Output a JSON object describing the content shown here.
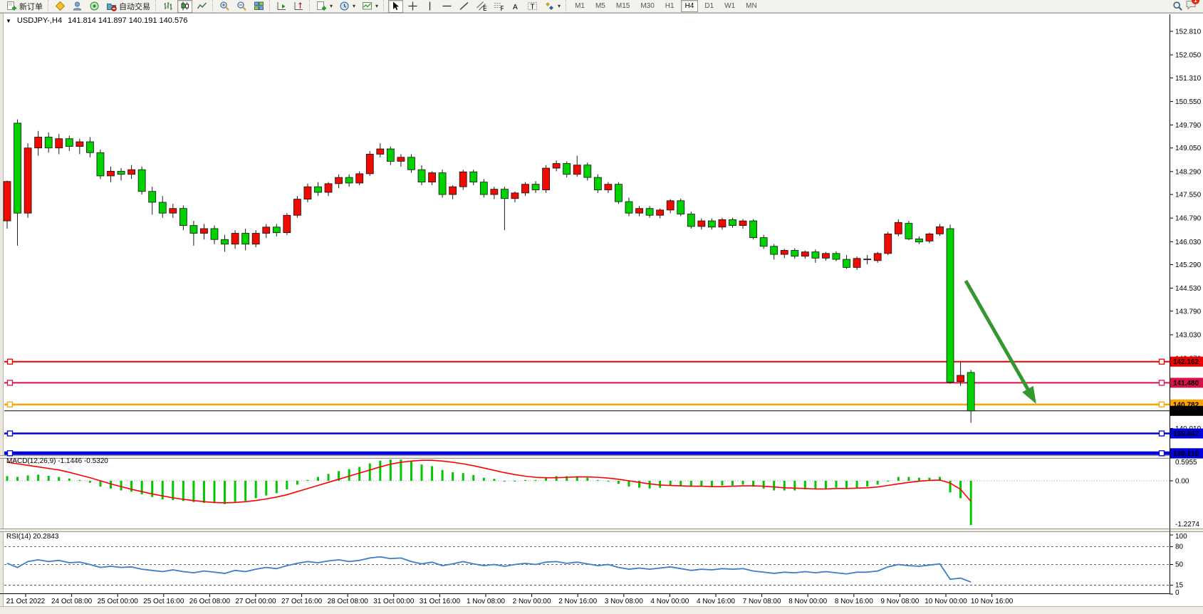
{
  "toolbar": {
    "new_order_label": "新订单",
    "auto_trading_label": "自动交易",
    "timeframes": [
      "M1",
      "M5",
      "M15",
      "M30",
      "H1",
      "H4",
      "D1",
      "W1",
      "MN"
    ],
    "active_timeframe": "H4",
    "chat_badge": "1"
  },
  "chart": {
    "symbol_period": "USDJPY-,H4",
    "ohlc_text": "141.814 141.897 140.191 140.576"
  },
  "chart_data": {
    "type": "candlestick",
    "symbol": "USDJPY-",
    "period": "H4",
    "current_bar": {
      "open": 141.814,
      "high": 141.897,
      "low": 140.191,
      "close": 140.576
    },
    "colors": {
      "bull": "#f00a00",
      "bear": "#00d200",
      "wick": "#1a1a1a",
      "macd_hist": "#00c800",
      "macd_signal": "#ff0000",
      "rsi_line": "#3d7dc8",
      "arrow": "#35972f",
      "red_line": "#ee0000",
      "crimson_line": "#d81148",
      "orange_line": "#ffa300",
      "blue_line": "#0000dd",
      "black_line": "#000000"
    },
    "price_axis": {
      "ticks": [
        "152.810",
        "152.050",
        "151.310",
        "150.550",
        "149.790",
        "149.050",
        "148.290",
        "147.550",
        "146.790",
        "146.030",
        "145.290",
        "144.530",
        "143.790",
        "143.030",
        "142.270",
        "140.010"
      ]
    },
    "hlines": [
      {
        "price": 142.162,
        "label": "142.162",
        "color": "#ee0000",
        "width": 2,
        "handles": true
      },
      {
        "price": 141.48,
        "label": "141.480",
        "color": "#d81148",
        "width": 2,
        "handles": true
      },
      {
        "price": 140.782,
        "label": "140.782",
        "color": "#ffa300",
        "width": 2.5,
        "handles": true
      },
      {
        "price": 140.576,
        "label": "140.576",
        "color": "#000000",
        "width": 1,
        "handles": false
      },
      {
        "price": 139.847,
        "label": "139.847",
        "color": "#0000dd",
        "width": 2.5,
        "handles": true
      },
      {
        "price": 139.21,
        "label": "139.210",
        "color": "#0000dd",
        "width": 5,
        "handles": true
      }
    ],
    "arrow": {
      "from_bar": 92.5,
      "from_price": 144.77,
      "to_bar": 99.3,
      "to_price": 140.8
    },
    "candles": [
      [
        146.7,
        148.0,
        146.45,
        147.97
      ],
      [
        149.85,
        149.97,
        145.9,
        146.95
      ],
      [
        146.95,
        149.2,
        146.8,
        149.05
      ],
      [
        149.05,
        149.6,
        148.8,
        149.4
      ],
      [
        149.4,
        149.55,
        148.9,
        149.05
      ],
      [
        149.05,
        149.5,
        148.85,
        149.35
      ],
      [
        149.35,
        149.45,
        148.95,
        149.1
      ],
      [
        149.1,
        149.35,
        148.85,
        149.25
      ],
      [
        149.25,
        149.4,
        148.75,
        148.9
      ],
      [
        148.9,
        149.0,
        148.05,
        148.15
      ],
      [
        148.15,
        148.45,
        147.95,
        148.3
      ],
      [
        148.3,
        148.4,
        148.0,
        148.2
      ],
      [
        148.2,
        148.5,
        148.05,
        148.35
      ],
      [
        148.35,
        148.45,
        147.55,
        147.65
      ],
      [
        147.65,
        147.8,
        146.9,
        147.3
      ],
      [
        147.3,
        147.5,
        146.8,
        146.95
      ],
      [
        146.95,
        147.25,
        146.8,
        147.1
      ],
      [
        147.1,
        147.2,
        146.4,
        146.55
      ],
      [
        146.55,
        146.7,
        145.9,
        146.3
      ],
      [
        146.3,
        146.6,
        146.1,
        146.45
      ],
      [
        146.45,
        146.55,
        145.95,
        146.1
      ],
      [
        146.1,
        146.25,
        145.7,
        145.95
      ],
      [
        145.95,
        146.4,
        145.8,
        146.3
      ],
      [
        146.3,
        146.45,
        145.75,
        145.95
      ],
      [
        145.95,
        146.4,
        145.85,
        146.3
      ],
      [
        146.3,
        146.6,
        146.15,
        146.5
      ],
      [
        146.5,
        146.6,
        146.2,
        146.32
      ],
      [
        146.32,
        146.95,
        146.25,
        146.88
      ],
      [
        146.88,
        147.5,
        146.8,
        147.4
      ],
      [
        147.4,
        147.9,
        147.3,
        147.8
      ],
      [
        147.8,
        147.95,
        147.5,
        147.62
      ],
      [
        147.62,
        147.95,
        147.5,
        147.9
      ],
      [
        147.9,
        148.2,
        147.75,
        148.1
      ],
      [
        148.1,
        148.2,
        147.8,
        147.92
      ],
      [
        147.92,
        148.3,
        147.85,
        148.22
      ],
      [
        148.22,
        148.95,
        148.15,
        148.85
      ],
      [
        148.85,
        149.2,
        148.75,
        149.02
      ],
      [
        149.02,
        149.1,
        148.5,
        148.62
      ],
      [
        148.62,
        148.85,
        148.45,
        148.75
      ],
      [
        148.75,
        148.85,
        148.25,
        148.35
      ],
      [
        148.35,
        148.5,
        147.85,
        147.95
      ],
      [
        147.95,
        148.3,
        147.85,
        148.25
      ],
      [
        148.25,
        148.35,
        147.45,
        147.55
      ],
      [
        147.55,
        147.85,
        147.4,
        147.8
      ],
      [
        147.8,
        148.35,
        147.7,
        148.28
      ],
      [
        148.28,
        148.35,
        147.85,
        147.95
      ],
      [
        147.95,
        148.05,
        147.45,
        147.55
      ],
      [
        147.55,
        147.8,
        147.4,
        147.72
      ],
      [
        147.72,
        147.8,
        146.4,
        147.42
      ],
      [
        147.42,
        147.65,
        147.3,
        147.6
      ],
      [
        147.6,
        147.95,
        147.5,
        147.88
      ],
      [
        147.88,
        147.98,
        147.6,
        147.7
      ],
      [
        147.7,
        148.5,
        147.6,
        148.4
      ],
      [
        148.4,
        148.65,
        148.3,
        148.55
      ],
      [
        148.55,
        148.62,
        148.1,
        148.2
      ],
      [
        148.2,
        148.8,
        148.12,
        148.5
      ],
      [
        148.5,
        148.58,
        148.0,
        148.1
      ],
      [
        148.1,
        148.2,
        147.6,
        147.7
      ],
      [
        147.7,
        147.95,
        147.6,
        147.88
      ],
      [
        147.88,
        147.95,
        147.25,
        147.32
      ],
      [
        147.32,
        147.45,
        146.85,
        146.95
      ],
      [
        146.95,
        147.18,
        146.85,
        147.1
      ],
      [
        147.1,
        147.18,
        146.8,
        146.88
      ],
      [
        146.88,
        147.1,
        146.78,
        147.05
      ],
      [
        147.05,
        147.4,
        146.95,
        147.35
      ],
      [
        147.35,
        147.42,
        146.85,
        146.92
      ],
      [
        146.92,
        147.0,
        146.45,
        146.52
      ],
      [
        146.52,
        146.78,
        146.42,
        146.7
      ],
      [
        146.7,
        146.78,
        146.42,
        146.5
      ],
      [
        146.5,
        146.8,
        146.42,
        146.74
      ],
      [
        146.74,
        146.8,
        146.48,
        146.55
      ],
      [
        146.55,
        146.76,
        146.45,
        146.7
      ],
      [
        146.7,
        146.76,
        146.1,
        146.16
      ],
      [
        146.16,
        146.25,
        145.8,
        145.88
      ],
      [
        145.88,
        145.95,
        145.45,
        145.62
      ],
      [
        145.62,
        145.8,
        145.5,
        145.75
      ],
      [
        145.75,
        145.82,
        145.48,
        145.56
      ],
      [
        145.56,
        145.75,
        145.48,
        145.7
      ],
      [
        145.7,
        145.78,
        145.35,
        145.5
      ],
      [
        145.5,
        145.7,
        145.42,
        145.65
      ],
      [
        145.65,
        145.72,
        145.4,
        145.46
      ],
      [
        145.46,
        145.6,
        145.15,
        145.2
      ],
      [
        145.2,
        145.55,
        145.12,
        145.49
      ],
      [
        145.46,
        145.6,
        145.3,
        145.47
      ],
      [
        145.42,
        145.7,
        145.35,
        145.65
      ],
      [
        145.65,
        146.35,
        145.6,
        146.28
      ],
      [
        146.28,
        146.75,
        146.2,
        146.65
      ],
      [
        146.62,
        146.7,
        146.08,
        146.12
      ],
      [
        146.12,
        146.2,
        145.95,
        146.02
      ],
      [
        146.05,
        146.32,
        145.98,
        146.28
      ],
      [
        146.28,
        146.6,
        146.22,
        146.51
      ],
      [
        146.45,
        146.58,
        141.45,
        141.5
      ],
      [
        141.52,
        142.16,
        141.38,
        141.72
      ],
      [
        141.814,
        141.897,
        140.191,
        140.576
      ]
    ],
    "macd": {
      "name": "MACD(12,26,9)",
      "values_text": "-1.1446 -0.5320",
      "scale": {
        "max": "0.5955",
        "zero": "0.00",
        "min": "-1.2274"
      },
      "hist": [
        0.12,
        0.1,
        0.14,
        0.16,
        0.13,
        0.1,
        0.06,
        0.02,
        -0.05,
        -0.15,
        -0.2,
        -0.25,
        -0.28,
        -0.35,
        -0.42,
        -0.48,
        -0.5,
        -0.52,
        -0.55,
        -0.57,
        -0.58,
        -0.6,
        -0.55,
        -0.52,
        -0.45,
        -0.38,
        -0.32,
        -0.22,
        -0.1,
        0.02,
        0.1,
        0.18,
        0.25,
        0.3,
        0.36,
        0.45,
        0.52,
        0.55,
        0.55,
        0.5,
        0.42,
        0.38,
        0.28,
        0.22,
        0.2,
        0.15,
        0.08,
        0.05,
        0.0,
        0.0,
        0.02,
        0.02,
        0.08,
        0.12,
        0.12,
        0.12,
        0.08,
        0.02,
        -0.02,
        -0.08,
        -0.15,
        -0.18,
        -0.2,
        -0.18,
        -0.12,
        -0.12,
        -0.15,
        -0.15,
        -0.15,
        -0.12,
        -0.12,
        -0.1,
        -0.15,
        -0.2,
        -0.25,
        -0.25,
        -0.25,
        -0.22,
        -0.22,
        -0.2,
        -0.18,
        -0.2,
        -0.18,
        -0.15,
        -0.1,
        0.0,
        0.1,
        0.1,
        0.08,
        0.08,
        0.1,
        -0.3,
        -0.45,
        -1.1446
      ],
      "signal": [
        0.48,
        0.44,
        0.4,
        0.36,
        0.32,
        0.28,
        0.22,
        0.15,
        0.08,
        0.0,
        -0.08,
        -0.15,
        -0.22,
        -0.28,
        -0.34,
        -0.39,
        -0.44,
        -0.48,
        -0.51,
        -0.54,
        -0.56,
        -0.57,
        -0.56,
        -0.54,
        -0.51,
        -0.47,
        -0.42,
        -0.36,
        -0.28,
        -0.2,
        -0.12,
        -0.04,
        0.04,
        0.12,
        0.2,
        0.28,
        0.36,
        0.43,
        0.48,
        0.51,
        0.53,
        0.53,
        0.51,
        0.48,
        0.44,
        0.39,
        0.33,
        0.27,
        0.21,
        0.16,
        0.12,
        0.09,
        0.08,
        0.08,
        0.09,
        0.1,
        0.1,
        0.09,
        0.07,
        0.04,
        0.0,
        -0.04,
        -0.08,
        -0.11,
        -0.12,
        -0.13,
        -0.14,
        -0.14,
        -0.15,
        -0.15,
        -0.14,
        -0.13,
        -0.13,
        -0.14,
        -0.16,
        -0.18,
        -0.19,
        -0.2,
        -0.21,
        -0.21,
        -0.2,
        -0.2,
        -0.19,
        -0.18,
        -0.16,
        -0.12,
        -0.08,
        -0.04,
        -0.01,
        0.01,
        0.02,
        -0.06,
        -0.22,
        -0.532
      ]
    },
    "rsi": {
      "name": "RSI(14)",
      "value_text": "20.2843",
      "levels": [
        100,
        80,
        50,
        15,
        0
      ],
      "dashed_levels": [
        80,
        50,
        15
      ],
      "values": [
        52,
        45,
        55,
        58,
        55,
        57,
        53,
        54,
        50,
        45,
        47,
        45,
        46,
        42,
        40,
        38,
        41,
        38,
        36,
        39,
        37,
        35,
        40,
        38,
        42,
        45,
        43,
        48,
        52,
        55,
        53,
        56,
        58,
        55,
        57,
        61,
        63,
        60,
        61,
        55,
        51,
        54,
        48,
        51,
        55,
        51,
        48,
        50,
        47,
        50,
        52,
        50,
        54,
        55,
        52,
        54,
        51,
        48,
        50,
        45,
        42,
        44,
        42,
        44,
        46,
        43,
        40,
        42,
        41,
        43,
        42,
        43,
        39,
        37,
        35,
        37,
        36,
        38,
        36,
        38,
        36,
        34,
        37,
        37,
        39,
        46,
        50,
        48,
        47,
        49,
        51,
        25,
        27,
        20.2843
      ]
    },
    "time_axis": {
      "labels": [
        "21 Oct 2022",
        "24 Oct 08:00",
        "25 Oct 00:00",
        "25 Oct 16:00",
        "26 Oct 08:00",
        "27 Oct 00:00",
        "27 Oct 16:00",
        "28 Oct 08:00",
        "31 Oct 00:00",
        "31 Oct 16:00",
        "1 Nov 08:00",
        "2 Nov 00:00",
        "2 Nov 16:00",
        "3 Nov 08:00",
        "4 Nov 00:00",
        "4 Nov 16:00",
        "7 Nov 08:00",
        "8 Nov 00:00",
        "8 Nov 16:00",
        "9 Nov 08:00",
        "10 Nov 00:00",
        "10 Nov 16:00"
      ]
    }
  }
}
